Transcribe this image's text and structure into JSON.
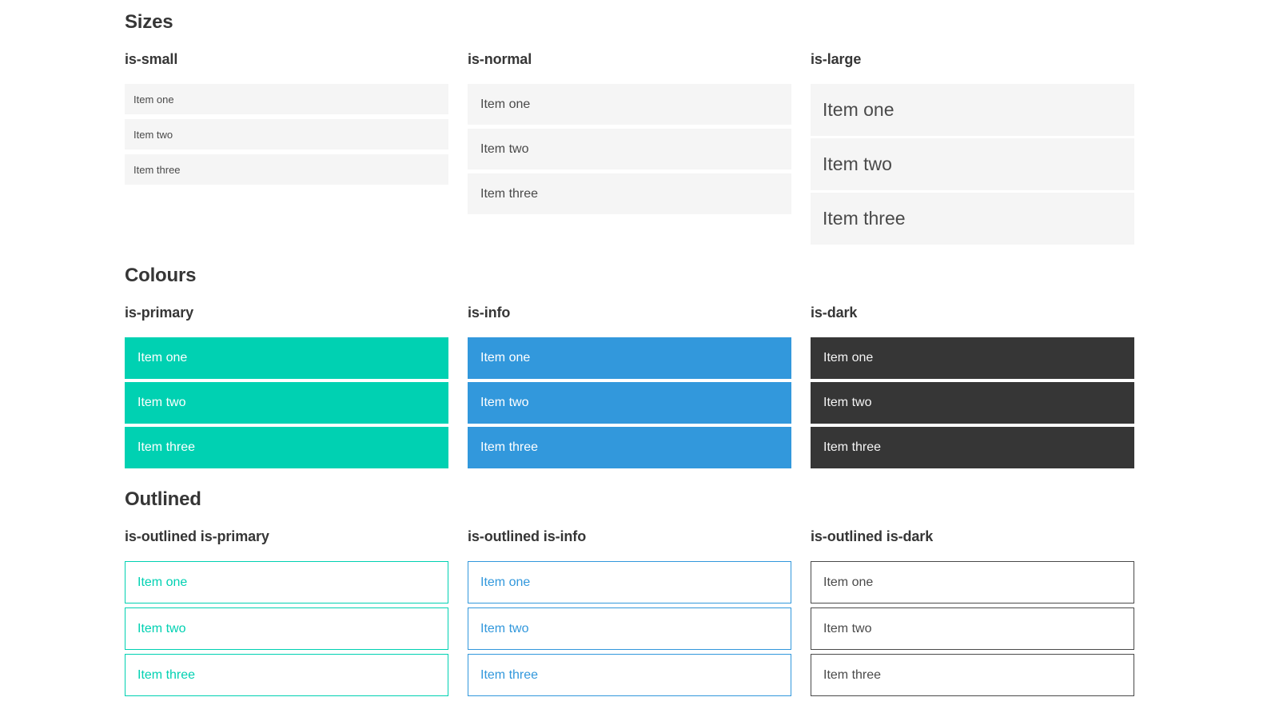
{
  "page": {
    "background": "#ffffff"
  },
  "colors": {
    "primary": "#00d1b2",
    "info": "#3298dc",
    "dark": "#363636",
    "neutral_item_bg": "#f5f5f5",
    "neutral_item_text": "#4a4a4a",
    "heading_text": "#363636",
    "text_on_color": "#ffffff"
  },
  "sections": [
    {
      "title": "Sizes",
      "groups": [
        {
          "label": "is-small",
          "items": [
            "Item one",
            "Item two",
            "Item three"
          ]
        },
        {
          "label": "is-normal",
          "items": [
            "Item one",
            "Item two",
            "Item three"
          ]
        },
        {
          "label": "is-large",
          "items": [
            "Item one",
            "Item two",
            "Item three"
          ]
        }
      ]
    },
    {
      "title": "Colours",
      "groups": [
        {
          "label": "is-primary",
          "items": [
            "Item one",
            "Item two",
            "Item three"
          ]
        },
        {
          "label": "is-info",
          "items": [
            "Item one",
            "Item two",
            "Item three"
          ]
        },
        {
          "label": "is-dark",
          "items": [
            "Item one",
            "Item two",
            "Item three"
          ]
        }
      ]
    },
    {
      "title": "Outlined",
      "groups": [
        {
          "label": "is-outlined is-primary",
          "items": [
            "Item one",
            "Item two",
            "Item three"
          ]
        },
        {
          "label": "is-outlined is-info",
          "items": [
            "Item one",
            "Item two",
            "Item three"
          ]
        },
        {
          "label": "is-outlined is-dark",
          "items": [
            "Item one",
            "Item two",
            "Item three"
          ]
        }
      ]
    }
  ]
}
